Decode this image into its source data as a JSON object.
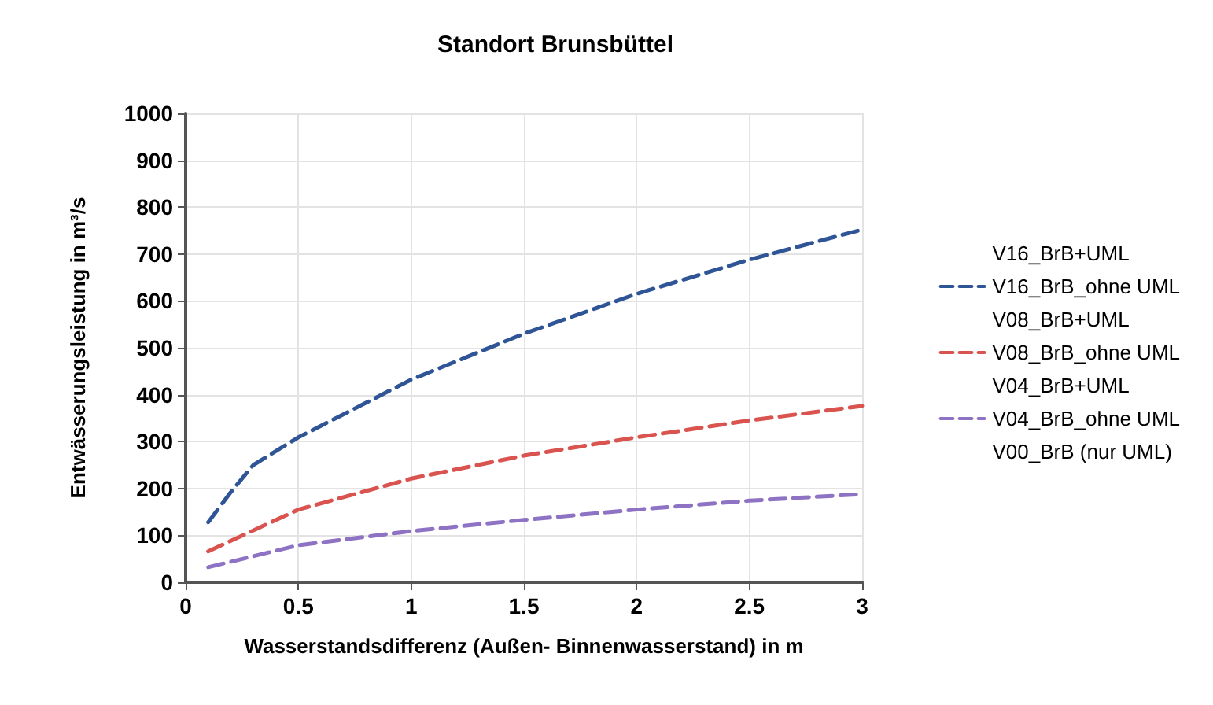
{
  "chart_data": {
    "type": "line",
    "title": "Standort Brunsbüttel",
    "xlabel": "Wasserstandsdifferenz (Außen- Binnenwasserstand) in m",
    "ylabel": "Entwässerungsleistung in m³/s",
    "x": [
      0.1,
      0.2,
      0.3,
      0.5,
      1,
      1.5,
      2,
      2.5,
      3
    ],
    "series": [
      {
        "name": "V16_BrB+UML",
        "values": [
          null,
          null,
          null,
          null,
          null,
          null,
          null,
          null,
          null
        ]
      },
      {
        "name": "V16_BrB_ohne UML",
        "color": "#2f5597",
        "values": [
          128,
          192,
          250,
          309,
          432,
          530,
          615,
          688,
          752
        ]
      },
      {
        "name": "V08_BrB+UML",
        "values": [
          null,
          null,
          null,
          null,
          null,
          null,
          null,
          null,
          null
        ]
      },
      {
        "name": "V08_BrB_ohne UML",
        "color": "#d9534f",
        "values": [
          66,
          null,
          null,
          155,
          221,
          270,
          309,
          345,
          376
        ]
      },
      {
        "name": "V04_BrB+UML",
        "values": [
          null,
          null,
          null,
          null,
          null,
          null,
          null,
          null,
          null
        ]
      },
      {
        "name": "V04_BrB_ohne UML",
        "color": "#8e72c4",
        "values": [
          32,
          null,
          null,
          79,
          109,
          133,
          155,
          174,
          188
        ]
      },
      {
        "name": "V00_BrB (nur UML)",
        "values": [
          null,
          null,
          null,
          null,
          null,
          null,
          null,
          null,
          null
        ]
      }
    ],
    "xlim": [
      0,
      3
    ],
    "xticks": [
      0,
      0.5,
      1,
      1.5,
      2,
      2.5,
      3
    ],
    "ylim": [
      0,
      1000
    ],
    "yticks": [
      0,
      100,
      200,
      300,
      400,
      500,
      600,
      700,
      800,
      900,
      1000
    ],
    "grid": true,
    "legend": "right",
    "marker": "none",
    "line_style": "dashed"
  }
}
